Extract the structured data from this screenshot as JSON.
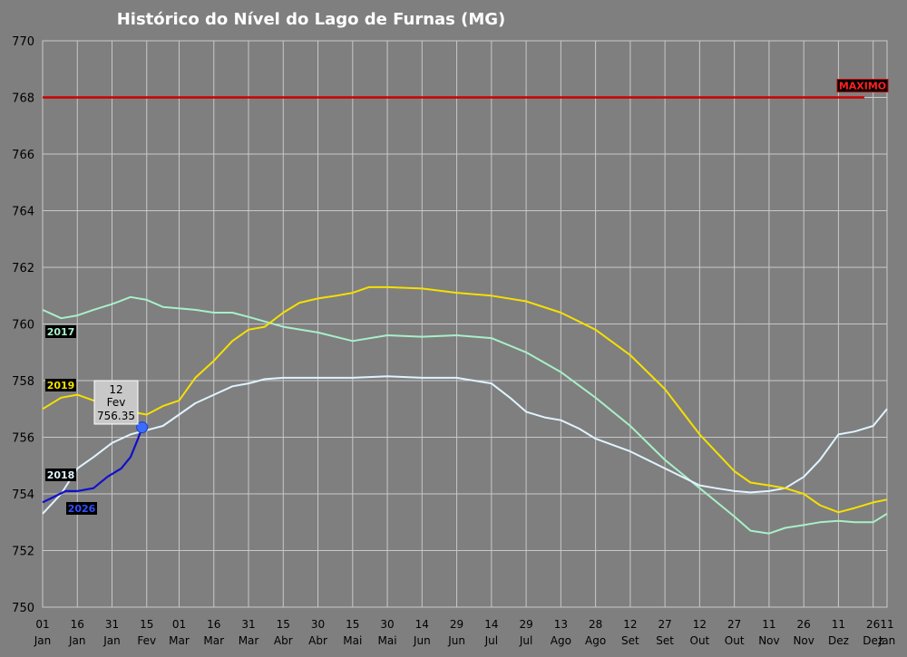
{
  "chart_data": {
    "type": "line",
    "title": "Histórico do Nível do Lago de Furnas (MG)",
    "xlabel": "",
    "ylabel": "",
    "ylim": [
      750,
      770
    ],
    "yticks": [
      "750",
      "752",
      "754",
      "756",
      "758",
      "760",
      "762",
      "764",
      "766",
      "768",
      "770"
    ],
    "xlim": [
      0,
      365
    ],
    "xticks": [
      {
        "x": 0,
        "day": "01",
        "month": "Jan"
      },
      {
        "x": 15,
        "day": "16",
        "month": "Jan"
      },
      {
        "x": 30,
        "day": "31",
        "month": "Jan"
      },
      {
        "x": 45,
        "day": "15",
        "month": "Fev"
      },
      {
        "x": 59,
        "day": "01",
        "month": "Mar"
      },
      {
        "x": 74,
        "day": "16",
        "month": "Mar"
      },
      {
        "x": 89,
        "day": "31",
        "month": "Mar"
      },
      {
        "x": 104,
        "day": "15",
        "month": "Abr"
      },
      {
        "x": 119,
        "day": "30",
        "month": "Abr"
      },
      {
        "x": 134,
        "day": "15",
        "month": "Mai"
      },
      {
        "x": 149,
        "day": "30",
        "month": "Mai"
      },
      {
        "x": 164,
        "day": "14",
        "month": "Jun"
      },
      {
        "x": 179,
        "day": "29",
        "month": "Jun"
      },
      {
        "x": 194,
        "day": "14",
        "month": "Jul"
      },
      {
        "x": 209,
        "day": "29",
        "month": "Jul"
      },
      {
        "x": 224,
        "day": "13",
        "month": "Ago"
      },
      {
        "x": 239,
        "day": "28",
        "month": "Ago"
      },
      {
        "x": 254,
        "day": "12",
        "month": "Set"
      },
      {
        "x": 269,
        "day": "27",
        "month": "Set"
      },
      {
        "x": 284,
        "day": "12",
        "month": "Out"
      },
      {
        "x": 299,
        "day": "27",
        "month": "Out"
      },
      {
        "x": 314,
        "day": "11",
        "month": "Nov"
      },
      {
        "x": 329,
        "day": "26",
        "month": "Nov"
      },
      {
        "x": 344,
        "day": "11",
        "month": "Dez"
      },
      {
        "x": 359,
        "day": "26",
        "month": "Dez"
      }
    ],
    "reference_line": {
      "name": "MAXIMO",
      "y": 768,
      "color": "#cc0000"
    },
    "series": [
      {
        "name": "2017",
        "color": "#a8f0c8",
        "points": [
          [
            0,
            760.5
          ],
          [
            8,
            760.2
          ],
          [
            15,
            760.3
          ],
          [
            22,
            760.5
          ],
          [
            30,
            760.7
          ],
          [
            38,
            760.95
          ],
          [
            45,
            760.85
          ],
          [
            52,
            760.6
          ],
          [
            66,
            760.5
          ],
          [
            74,
            760.4
          ],
          [
            82,
            760.4
          ],
          [
            89,
            760.25
          ],
          [
            104,
            759.9
          ],
          [
            119,
            759.7
          ],
          [
            134,
            759.4
          ],
          [
            149,
            759.6
          ],
          [
            164,
            759.55
          ],
          [
            179,
            759.6
          ],
          [
            194,
            759.5
          ],
          [
            209,
            759.0
          ],
          [
            224,
            758.3
          ],
          [
            239,
            757.4
          ],
          [
            254,
            756.4
          ],
          [
            269,
            755.2
          ],
          [
            284,
            754.2
          ],
          [
            299,
            753.2
          ],
          [
            306,
            752.7
          ],
          [
            314,
            752.6
          ],
          [
            321,
            752.8
          ],
          [
            329,
            752.9
          ],
          [
            336,
            753.0
          ],
          [
            344,
            753.05
          ],
          [
            351,
            753.0
          ],
          [
            359,
            753.0
          ],
          [
            365,
            753.3
          ]
        ]
      },
      {
        "name": "2018",
        "color": "#e0f4ff",
        "points": [
          [
            0,
            753.3
          ],
          [
            8,
            754.0
          ],
          [
            15,
            754.9
          ],
          [
            22,
            755.3
          ],
          [
            30,
            755.8
          ],
          [
            38,
            756.1
          ],
          [
            45,
            756.25
          ],
          [
            52,
            756.4
          ],
          [
            59,
            756.8
          ],
          [
            66,
            757.2
          ],
          [
            74,
            757.5
          ],
          [
            82,
            757.8
          ],
          [
            89,
            757.9
          ],
          [
            96,
            758.05
          ],
          [
            104,
            758.1
          ],
          [
            119,
            758.1
          ],
          [
            134,
            758.1
          ],
          [
            149,
            758.15
          ],
          [
            164,
            758.1
          ],
          [
            179,
            758.1
          ],
          [
            194,
            757.9
          ],
          [
            202,
            757.4
          ],
          [
            209,
            756.9
          ],
          [
            217,
            756.7
          ],
          [
            224,
            756.6
          ],
          [
            232,
            756.3
          ],
          [
            239,
            755.95
          ],
          [
            254,
            755.5
          ],
          [
            269,
            754.9
          ],
          [
            284,
            754.3
          ],
          [
            291,
            754.2
          ],
          [
            299,
            754.1
          ],
          [
            306,
            754.05
          ],
          [
            314,
            754.1
          ],
          [
            321,
            754.2
          ],
          [
            329,
            754.6
          ],
          [
            336,
            755.2
          ],
          [
            344,
            756.1
          ],
          [
            351,
            756.2
          ],
          [
            359,
            756.4
          ],
          [
            365,
            757.0
          ]
        ]
      },
      {
        "name": "2019",
        "color": "#f5e000",
        "points": [
          [
            0,
            757.0
          ],
          [
            8,
            757.4
          ],
          [
            15,
            757.5
          ],
          [
            22,
            757.3
          ],
          [
            30,
            757.1
          ],
          [
            38,
            756.9
          ],
          [
            45,
            756.8
          ],
          [
            52,
            757.1
          ],
          [
            59,
            757.3
          ],
          [
            66,
            758.1
          ],
          [
            74,
            758.7
          ],
          [
            82,
            759.4
          ],
          [
            89,
            759.8
          ],
          [
            96,
            759.9
          ],
          [
            104,
            760.4
          ],
          [
            111,
            760.75
          ],
          [
            119,
            760.9
          ],
          [
            127,
            761.0
          ],
          [
            134,
            761.1
          ],
          [
            141,
            761.3
          ],
          [
            149,
            761.3
          ],
          [
            164,
            761.25
          ],
          [
            179,
            761.1
          ],
          [
            194,
            761.0
          ],
          [
            209,
            760.8
          ],
          [
            224,
            760.4
          ],
          [
            239,
            759.8
          ],
          [
            254,
            758.9
          ],
          [
            269,
            757.7
          ],
          [
            284,
            756.1
          ],
          [
            299,
            754.8
          ],
          [
            306,
            754.4
          ],
          [
            314,
            754.3
          ],
          [
            321,
            754.2
          ],
          [
            329,
            754.0
          ],
          [
            336,
            753.6
          ],
          [
            344,
            753.35
          ],
          [
            351,
            753.5
          ],
          [
            359,
            753.7
          ],
          [
            365,
            753.8
          ]
        ]
      },
      {
        "name": "2026",
        "color": "#1010cc",
        "points": [
          [
            0,
            753.7
          ],
          [
            5,
            753.9
          ],
          [
            10,
            754.1
          ],
          [
            15,
            754.1
          ],
          [
            22,
            754.2
          ],
          [
            28,
            754.6
          ],
          [
            34,
            754.9
          ],
          [
            38,
            755.3
          ],
          [
            41,
            755.9
          ],
          [
            43,
            756.35
          ]
        ]
      }
    ],
    "tooltip": {
      "series": "2026",
      "day": "12",
      "month": "Fev",
      "value": "756.35",
      "x": 43,
      "y": 756.35
    }
  }
}
